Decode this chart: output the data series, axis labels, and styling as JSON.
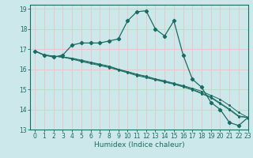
{
  "xlabel": "Humidex (Indice chaleur)",
  "bg_color": "#cce8ea",
  "grid_color": "#e8c8c8",
  "line_color": "#1a6b62",
  "xlim": [
    -0.5,
    23
  ],
  "ylim": [
    13,
    19.2
  ],
  "xticks": [
    0,
    1,
    2,
    3,
    4,
    5,
    6,
    7,
    8,
    9,
    10,
    11,
    12,
    13,
    14,
    15,
    16,
    17,
    18,
    19,
    20,
    21,
    22,
    23
  ],
  "yticks": [
    13,
    14,
    15,
    16,
    17,
    18,
    19
  ],
  "series_main": [
    16.9,
    16.7,
    16.6,
    16.7,
    17.2,
    17.3,
    17.3,
    17.3,
    17.4,
    17.5,
    18.4,
    18.85,
    18.9,
    18.0,
    17.65,
    18.4,
    16.7,
    15.5,
    15.1,
    14.35,
    14.0,
    13.35,
    13.2,
    13.6
  ],
  "series_trend": [
    [
      16.9,
      16.7,
      16.65,
      16.6,
      16.55,
      16.45,
      16.35,
      16.25,
      16.15,
      16.0,
      15.88,
      15.75,
      15.65,
      15.52,
      15.42,
      15.3,
      15.18,
      15.05,
      14.9,
      14.7,
      14.5,
      14.2,
      13.85,
      13.6
    ],
    [
      16.9,
      16.7,
      16.65,
      16.6,
      16.52,
      16.42,
      16.32,
      16.22,
      16.12,
      15.98,
      15.85,
      15.72,
      15.62,
      15.5,
      15.39,
      15.28,
      15.15,
      15.0,
      14.82,
      14.62,
      14.32,
      14.02,
      13.68,
      13.6
    ],
    [
      16.9,
      16.7,
      16.65,
      16.6,
      16.5,
      16.38,
      16.28,
      16.18,
      16.08,
      15.95,
      15.82,
      15.68,
      15.58,
      15.47,
      15.36,
      15.25,
      15.12,
      14.97,
      14.78,
      14.58,
      14.28,
      13.98,
      13.64,
      13.6
    ]
  ]
}
